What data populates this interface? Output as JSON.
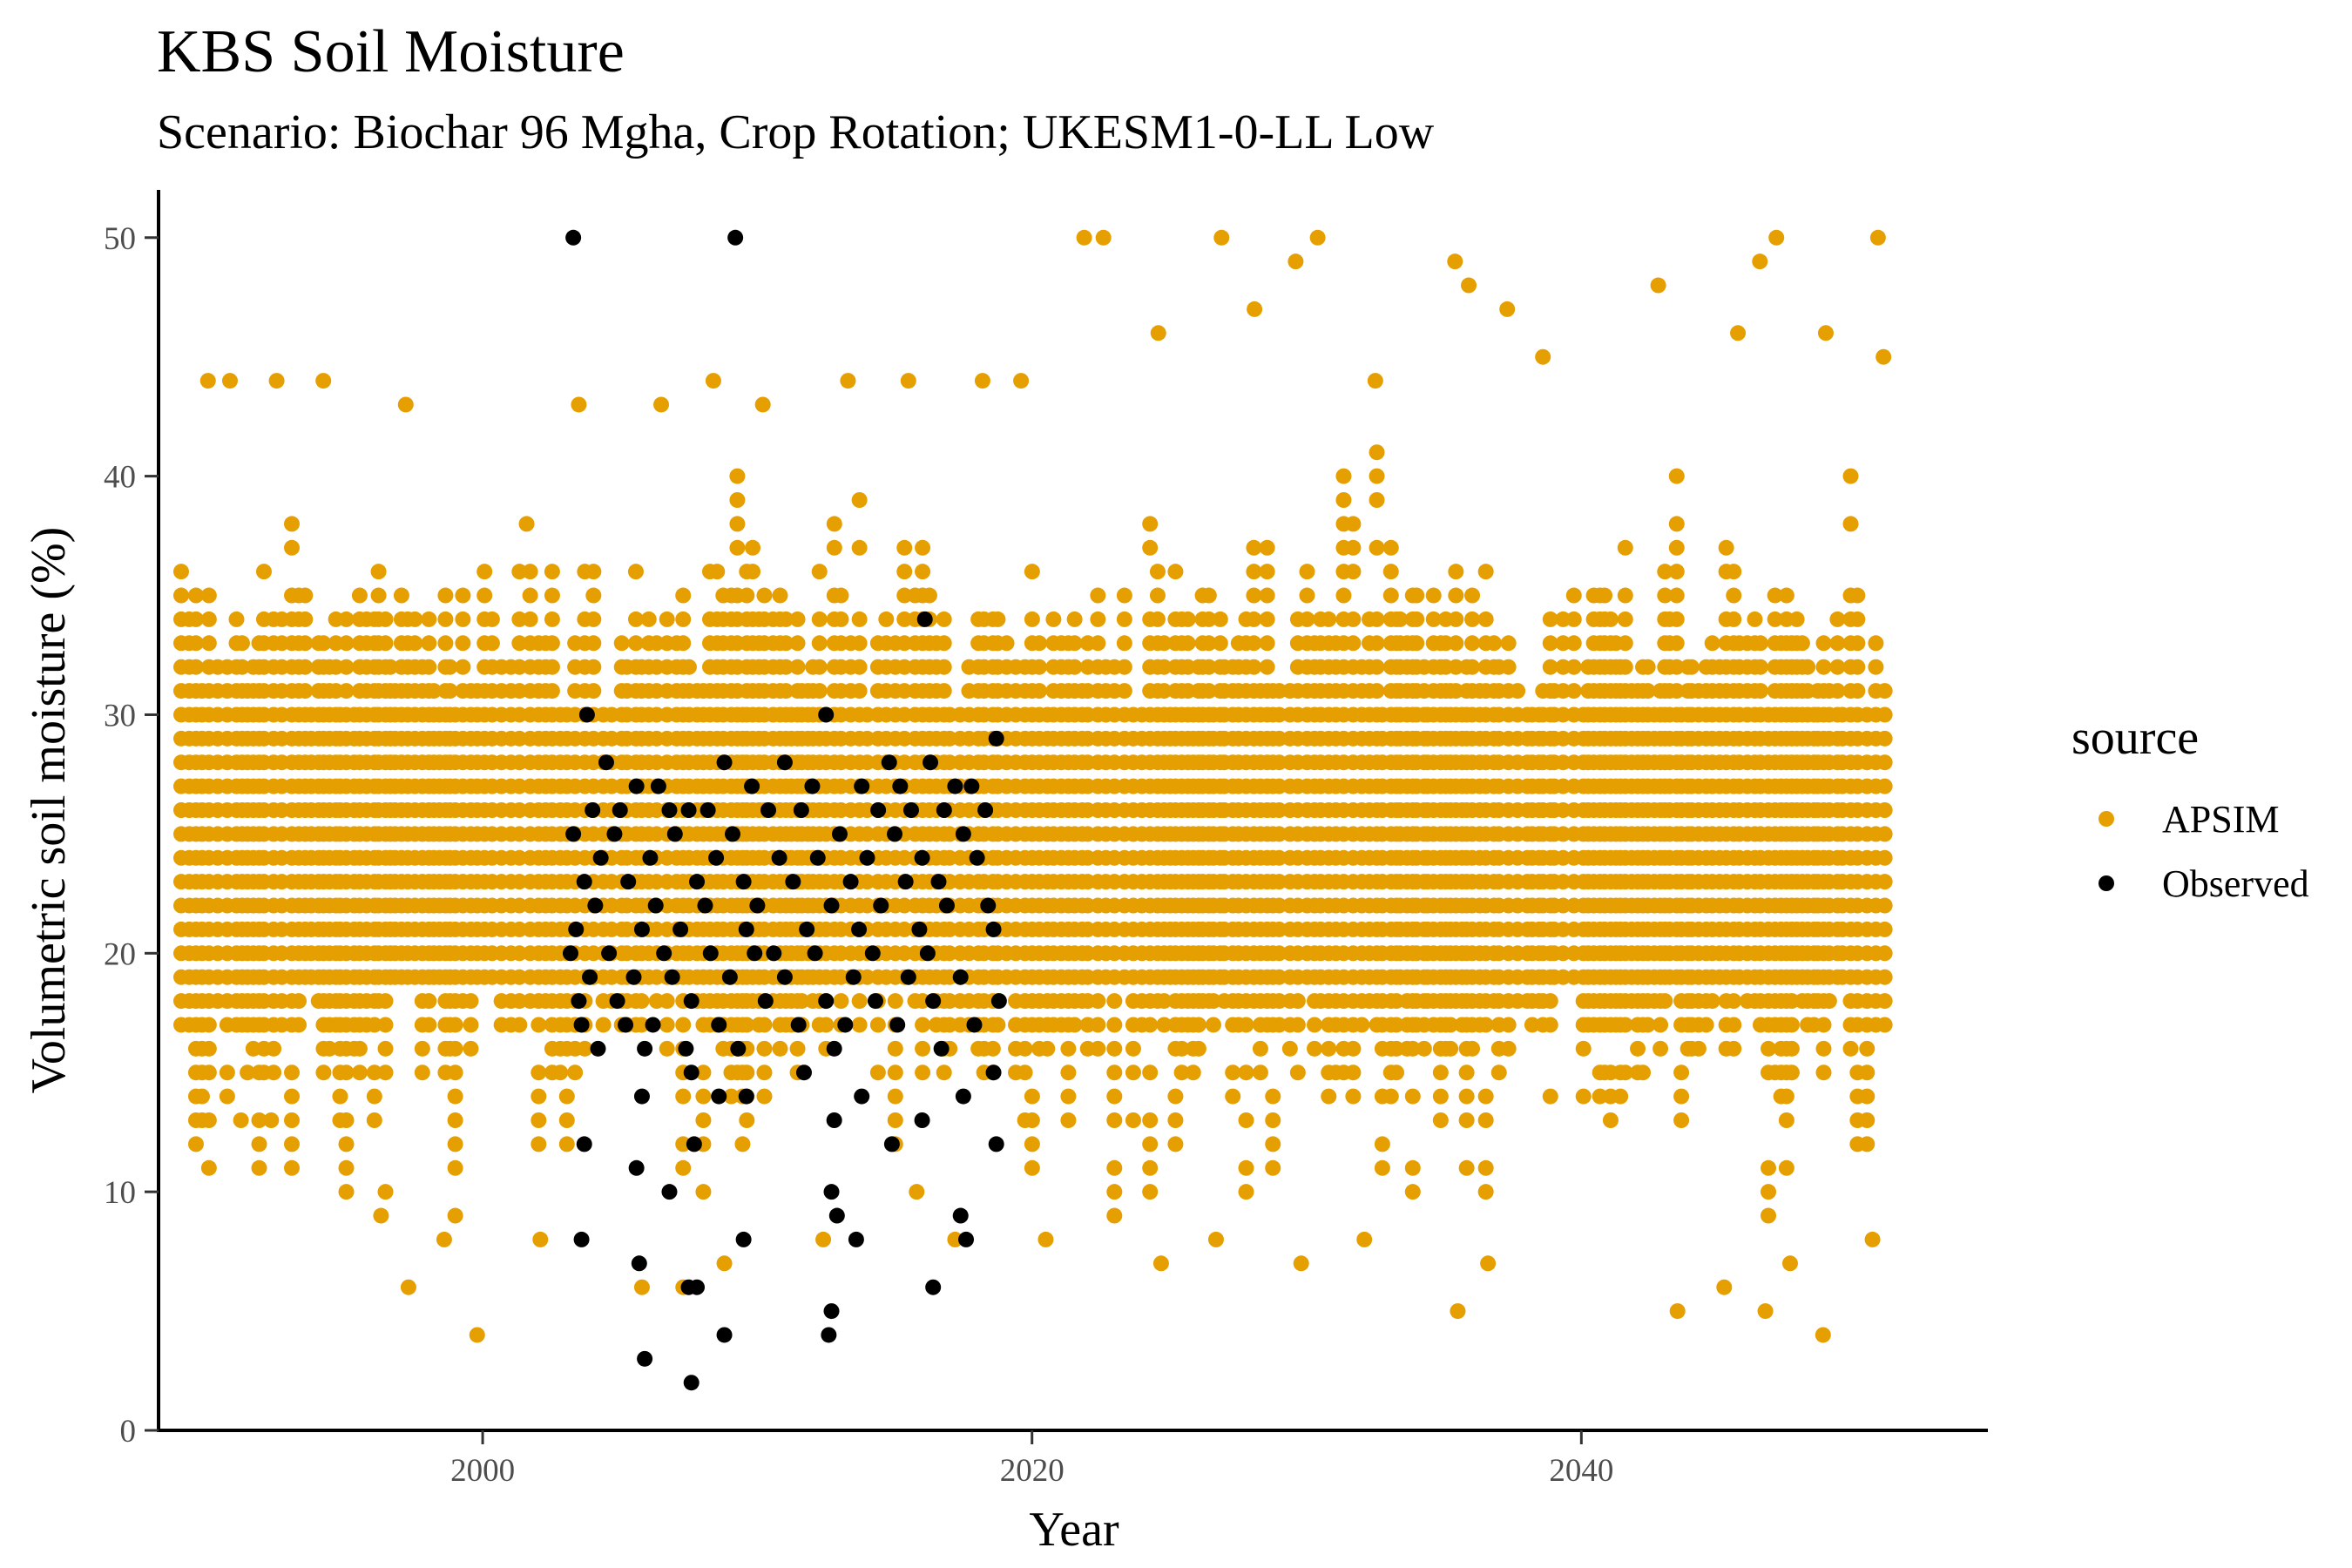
{
  "chart_data": {
    "type": "scatter",
    "title": "KBS Soil Moisture",
    "subtitle": "Scenario: Biochar 96 Mgha, Crop Rotation; UKESM1-0-LL Low",
    "xlabel": "Year",
    "ylabel": "Volumetric soil moisture (%)",
    "xlim": [
      1988.2,
      2054.8
    ],
    "ylim": [
      0,
      52
    ],
    "x_ticks": [
      2000,
      2020,
      2040
    ],
    "y_ticks": [
      0,
      10,
      20,
      30,
      40,
      50
    ],
    "grid": false,
    "legend": {
      "title": "source",
      "position": "right"
    },
    "series": [
      {
        "name": "APSIM",
        "color": "#E69F00",
        "x_range": [
          1989,
          2051
        ],
        "typical_min": 17,
        "typical_max": 36,
        "dense_band": [
          19,
          30
        ],
        "points": [
          [
            1990,
            44
          ],
          [
            1990.8,
            44
          ],
          [
            1992.5,
            44
          ],
          [
            1994.2,
            44
          ],
          [
            1997.2,
            43
          ],
          [
            2001.6,
            38
          ],
          [
            2003.5,
            43
          ],
          [
            2006.5,
            43
          ],
          [
            2008.4,
            44
          ],
          [
            2010.2,
            43
          ],
          [
            2013.3,
            44
          ],
          [
            2015.5,
            44
          ],
          [
            2018.2,
            44
          ],
          [
            2019.6,
            44
          ],
          [
            2021.9,
            50
          ],
          [
            2022.6,
            50
          ],
          [
            2024.6,
            46
          ],
          [
            2026.9,
            50
          ],
          [
            2028.1,
            47
          ],
          [
            2029.6,
            49
          ],
          [
            2030.4,
            50
          ],
          [
            2032.5,
            44
          ],
          [
            2035.4,
            49
          ],
          [
            2035.9,
            48
          ],
          [
            2037.3,
            47
          ],
          [
            2038.6,
            45
          ],
          [
            2042.8,
            48
          ],
          [
            2045.7,
            46
          ],
          [
            2046.5,
            49
          ],
          [
            2047.1,
            50
          ],
          [
            2048.9,
            46
          ],
          [
            2050.8,
            50
          ],
          [
            2051.0,
            45
          ],
          [
            1991.2,
            13
          ],
          [
            1992.3,
            13
          ],
          [
            1996.3,
            9
          ],
          [
            1997.3,
            6
          ],
          [
            1998.6,
            8
          ],
          [
            1999.8,
            4
          ],
          [
            2002.1,
            8
          ],
          [
            2005.8,
            6
          ],
          [
            2007.3,
            6
          ],
          [
            2008.8,
            7
          ],
          [
            2012.4,
            8
          ],
          [
            2015.8,
            10
          ],
          [
            2017.2,
            8
          ],
          [
            2020.5,
            8
          ],
          [
            2024.7,
            7
          ],
          [
            2026.7,
            8
          ],
          [
            2029.8,
            7
          ],
          [
            2032.1,
            8
          ],
          [
            2035.5,
            5
          ],
          [
            2036.6,
            7
          ],
          [
            2043.5,
            5
          ],
          [
            2045.2,
            6
          ],
          [
            2046.7,
            5
          ],
          [
            2047.6,
            7
          ],
          [
            2048.8,
            4
          ],
          [
            2050.6,
            8
          ]
        ]
      },
      {
        "name": "Observed",
        "color": "#000000",
        "points": [
          [
            2003.3,
            50
          ],
          [
            2009.2,
            50
          ],
          [
            2016.1,
            34
          ],
          [
            2003.8,
            30
          ],
          [
            2012.5,
            30
          ],
          [
            2018.7,
            29
          ],
          [
            2004.5,
            28
          ],
          [
            2008.8,
            28
          ],
          [
            2011.0,
            28
          ],
          [
            2014.8,
            28
          ],
          [
            2016.3,
            28
          ],
          [
            2005.6,
            27
          ],
          [
            2006.4,
            27
          ],
          [
            2009.8,
            27
          ],
          [
            2012.0,
            27
          ],
          [
            2013.8,
            27
          ],
          [
            2015.2,
            27
          ],
          [
            2017.2,
            27
          ],
          [
            2017.8,
            27
          ],
          [
            2004.0,
            26
          ],
          [
            2005.0,
            26
          ],
          [
            2006.8,
            26
          ],
          [
            2007.5,
            26
          ],
          [
            2008.2,
            26
          ],
          [
            2010.4,
            26
          ],
          [
            2011.6,
            26
          ],
          [
            2014.4,
            26
          ],
          [
            2015.6,
            26
          ],
          [
            2016.8,
            26
          ],
          [
            2018.3,
            26
          ],
          [
            2003.3,
            25
          ],
          [
            2004.8,
            25
          ],
          [
            2007.0,
            25
          ],
          [
            2009.1,
            25
          ],
          [
            2013.0,
            25
          ],
          [
            2015.0,
            25
          ],
          [
            2017.5,
            25
          ],
          [
            2004.3,
            24
          ],
          [
            2006.1,
            24
          ],
          [
            2008.5,
            24
          ],
          [
            2010.8,
            24
          ],
          [
            2012.2,
            24
          ],
          [
            2014.0,
            24
          ],
          [
            2016.0,
            24
          ],
          [
            2018.0,
            24
          ],
          [
            2003.7,
            23
          ],
          [
            2005.3,
            23
          ],
          [
            2007.8,
            23
          ],
          [
            2009.5,
            23
          ],
          [
            2011.3,
            23
          ],
          [
            2013.4,
            23
          ],
          [
            2015.4,
            23
          ],
          [
            2016.6,
            23
          ],
          [
            2004.1,
            22
          ],
          [
            2006.3,
            22
          ],
          [
            2008.1,
            22
          ],
          [
            2010.0,
            22
          ],
          [
            2012.7,
            22
          ],
          [
            2014.5,
            22
          ],
          [
            2016.9,
            22
          ],
          [
            2018.4,
            22
          ],
          [
            2003.4,
            21
          ],
          [
            2005.8,
            21
          ],
          [
            2007.2,
            21
          ],
          [
            2009.6,
            21
          ],
          [
            2011.8,
            21
          ],
          [
            2013.7,
            21
          ],
          [
            2015.9,
            21
          ],
          [
            2018.6,
            21
          ],
          [
            2003.2,
            20
          ],
          [
            2004.6,
            20
          ],
          [
            2006.6,
            20
          ],
          [
            2008.3,
            20
          ],
          [
            2009.9,
            20
          ],
          [
            2010.6,
            20
          ],
          [
            2012.1,
            20
          ],
          [
            2014.2,
            20
          ],
          [
            2016.2,
            20
          ],
          [
            2003.9,
            19
          ],
          [
            2005.5,
            19
          ],
          [
            2006.9,
            19
          ],
          [
            2009.0,
            19
          ],
          [
            2011.0,
            19
          ],
          [
            2013.5,
            19
          ],
          [
            2015.5,
            19
          ],
          [
            2017.4,
            19
          ],
          [
            2003.5,
            18
          ],
          [
            2004.9,
            18
          ],
          [
            2007.6,
            18
          ],
          [
            2010.3,
            18
          ],
          [
            2012.5,
            18
          ],
          [
            2014.3,
            18
          ],
          [
            2016.4,
            18
          ],
          [
            2018.8,
            18
          ],
          [
            2003.6,
            17
          ],
          [
            2005.2,
            17
          ],
          [
            2006.2,
            17
          ],
          [
            2008.6,
            17
          ],
          [
            2011.5,
            17
          ],
          [
            2013.2,
            17
          ],
          [
            2015.1,
            17
          ],
          [
            2017.9,
            17
          ],
          [
            2004.2,
            16
          ],
          [
            2005.9,
            16
          ],
          [
            2007.4,
            16
          ],
          [
            2009.3,
            16
          ],
          [
            2012.8,
            16
          ],
          [
            2016.7,
            16
          ],
          [
            2007.6,
            15
          ],
          [
            2011.7,
            15
          ],
          [
            2018.6,
            15
          ],
          [
            2005.8,
            14
          ],
          [
            2008.6,
            14
          ],
          [
            2009.6,
            14
          ],
          [
            2013.8,
            14
          ],
          [
            2017.5,
            14
          ],
          [
            2003.7,
            12
          ],
          [
            2007.7,
            12
          ],
          [
            2014.9,
            12
          ],
          [
            2018.7,
            12
          ],
          [
            2005.6,
            11
          ],
          [
            2016.0,
            13
          ],
          [
            2012.8,
            13
          ],
          [
            2006.8,
            10
          ],
          [
            2012.7,
            10
          ],
          [
            2012.9,
            9
          ],
          [
            2017.4,
            9
          ],
          [
            2003.6,
            8
          ],
          [
            2009.5,
            8
          ],
          [
            2013.6,
            8
          ],
          [
            2017.6,
            8
          ],
          [
            2005.7,
            7
          ],
          [
            2007.5,
            6
          ],
          [
            2007.8,
            6
          ],
          [
            2016.4,
            6
          ],
          [
            2012.7,
            5
          ],
          [
            2008.8,
            4
          ],
          [
            2012.6,
            4
          ],
          [
            2005.9,
            3
          ],
          [
            2007.6,
            2
          ]
        ]
      }
    ]
  }
}
